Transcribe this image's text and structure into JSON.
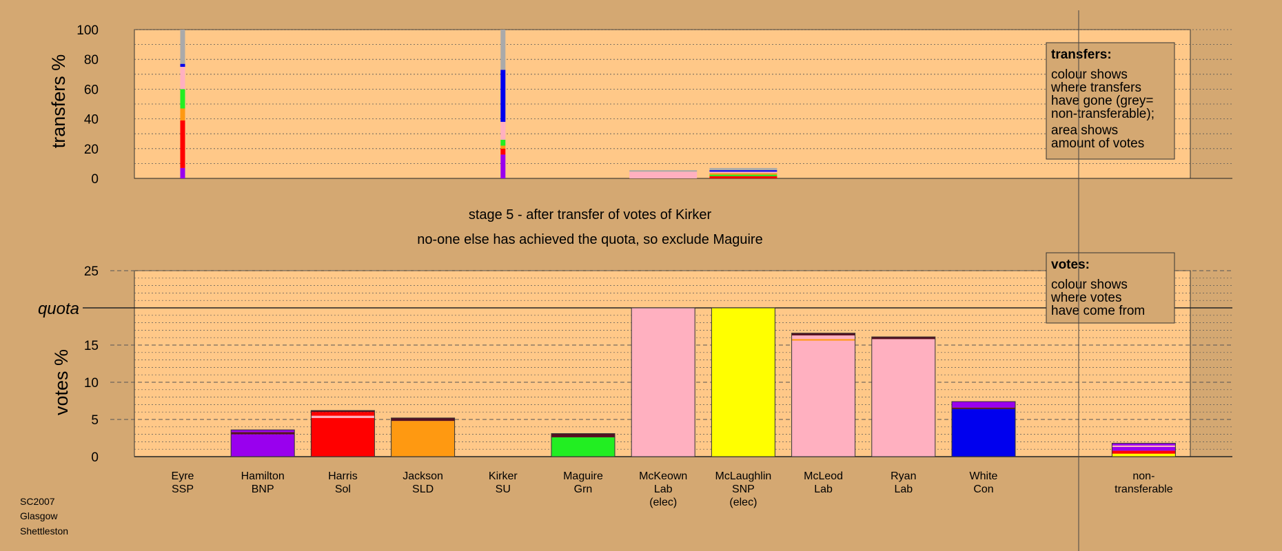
{
  "chart_data": {
    "type": "bar",
    "captions": [
      "stage 5 - after transfer of votes of Kirker",
      "no-one else has achieved the quota, so exclude Maguire"
    ],
    "footer": [
      "SC2007",
      "Glasgow",
      "Shettleston"
    ],
    "colors": {
      "SSP": "#ff3333",
      "BNP": "#9900ee",
      "Sol": "#ff0000",
      "SLD": "#ff9911",
      "SU": "#ffbbcc",
      "Grn": "#22ee22",
      "Lab": "#ffb0c0",
      "SNP": "#ffff00",
      "Con": "#0000ee",
      "Dark": "#551122",
      "NT": "#aaaaaa",
      "background": "#d4a872",
      "plot": "#ffc888"
    },
    "candidates": [
      {
        "name": "Eyre",
        "party": "SSP",
        "elected": ""
      },
      {
        "name": "Hamilton",
        "party": "BNP",
        "elected": ""
      },
      {
        "name": "Harris",
        "party": "Sol",
        "elected": ""
      },
      {
        "name": "Jackson",
        "party": "SLD",
        "elected": ""
      },
      {
        "name": "Kirker",
        "party": "SU",
        "elected": ""
      },
      {
        "name": "Maguire",
        "party": "Grn",
        "elected": ""
      },
      {
        "name": "McKeown",
        "party": "Lab",
        "elected": "(elec)"
      },
      {
        "name": "McLaughlin",
        "party": "SNP",
        "elected": "(elec)"
      },
      {
        "name": "McLeod",
        "party": "Lab",
        "elected": ""
      },
      {
        "name": "Ryan",
        "party": "Lab",
        "elected": ""
      },
      {
        "name": "White",
        "party": "Con",
        "elected": ""
      }
    ],
    "non_transferable_label": [
      "non-",
      "transferable"
    ],
    "transfers": {
      "ylabel": "transfers %",
      "ylim": [
        0,
        100
      ],
      "yticks": [
        0,
        20,
        40,
        60,
        80,
        100
      ],
      "columns": [
        {
          "index": 0,
          "segments": [
            {
              "color": "BNP",
              "value": 7
            },
            {
              "color": "Sol",
              "value": 32
            },
            {
              "color": "SLD",
              "value": 8
            },
            {
              "color": "Grn",
              "value": 13
            },
            {
              "color": "Lab",
              "value": 15
            },
            {
              "color": "Con",
              "value": 2
            },
            {
              "color": "NT",
              "value": 23
            }
          ]
        },
        {
          "index": 4,
          "segments": [
            {
              "color": "BNP",
              "value": 16
            },
            {
              "color": "Sol",
              "value": 4
            },
            {
              "color": "SLD",
              "value": 2
            },
            {
              "color": "Grn",
              "value": 4
            },
            {
              "color": "Lab",
              "value": 12
            },
            {
              "color": "Con",
              "value": 35
            },
            {
              "color": "NT",
              "value": 27
            }
          ]
        },
        {
          "index": 6,
          "wide": true,
          "segments": [
            {
              "color": "Lab",
              "value": 4.5
            },
            {
              "color": "NT",
              "value": 1
            }
          ]
        },
        {
          "index": 7,
          "wide": true,
          "segments": [
            {
              "color": "Sol",
              "value": 1.5
            },
            {
              "color": "Grn",
              "value": 1
            },
            {
              "color": "SLD",
              "value": 1
            },
            {
              "color": "Lab",
              "value": 1
            },
            {
              "color": "Con",
              "value": 1
            },
            {
              "color": "NT",
              "value": 1.5
            }
          ]
        }
      ]
    },
    "votes": {
      "ylabel": "votes %",
      "quota_label": "quota",
      "quota": 20,
      "ylim": [
        0,
        25
      ],
      "yticks": [
        0,
        5,
        10,
        15,
        20,
        25
      ],
      "bars": [
        {
          "index": 0,
          "segments": []
        },
        {
          "index": 1,
          "segments": [
            {
              "color": "BNP",
              "value": 3.0
            },
            {
              "color": "Dark",
              "value": 0.3
            },
            {
              "color": "BNP",
              "value": 0.3
            }
          ]
        },
        {
          "index": 2,
          "segments": [
            {
              "color": "Sol",
              "value": 5.2
            },
            {
              "color": "Lab",
              "value": 0.3
            },
            {
              "color": "Sol",
              "value": 0.5
            },
            {
              "color": "Dark",
              "value": 0.2
            }
          ]
        },
        {
          "index": 3,
          "segments": [
            {
              "color": "SLD",
              "value": 4.8
            },
            {
              "color": "Dark",
              "value": 0.4
            }
          ]
        },
        {
          "index": 4,
          "segments": []
        },
        {
          "index": 5,
          "segments": [
            {
              "color": "Grn",
              "value": 2.6
            },
            {
              "color": "Dark",
              "value": 0.5
            }
          ]
        },
        {
          "index": 6,
          "segments": [
            {
              "color": "Lab",
              "value": 20
            }
          ]
        },
        {
          "index": 7,
          "segments": [
            {
              "color": "SNP",
              "value": 20
            }
          ]
        },
        {
          "index": 8,
          "segments": [
            {
              "color": "Lab",
              "value": 15.6
            },
            {
              "color": "SLD",
              "value": 0.2
            },
            {
              "color": "Lab",
              "value": 0.5
            },
            {
              "color": "Dark",
              "value": 0.3
            }
          ]
        },
        {
          "index": 9,
          "segments": [
            {
              "color": "Lab",
              "value": 15.8
            },
            {
              "color": "Dark",
              "value": 0.3
            }
          ]
        },
        {
          "index": 10,
          "segments": [
            {
              "color": "Con",
              "value": 6.4
            },
            {
              "color": "Dark",
              "value": 0.2
            },
            {
              "color": "BNP",
              "value": 0.8
            }
          ]
        },
        {
          "index": 12,
          "segments": [
            {
              "color": "SNP",
              "value": 0.4
            },
            {
              "color": "Sol",
              "value": 0.4
            },
            {
              "color": "BNP",
              "value": 0.5
            },
            {
              "color": "Lab",
              "value": 0.2
            },
            {
              "color": "BNP",
              "value": 0.3
            }
          ]
        }
      ]
    },
    "legends": {
      "transfers": {
        "title": "transfers:",
        "lines": [
          "colour shows",
          "where transfers",
          "have gone (grey=",
          "non-transferable);",
          "area shows",
          "amount of votes"
        ]
      },
      "votes": {
        "title": "votes:",
        "lines": [
          "colour shows",
          "where votes",
          "have come from"
        ]
      }
    }
  }
}
